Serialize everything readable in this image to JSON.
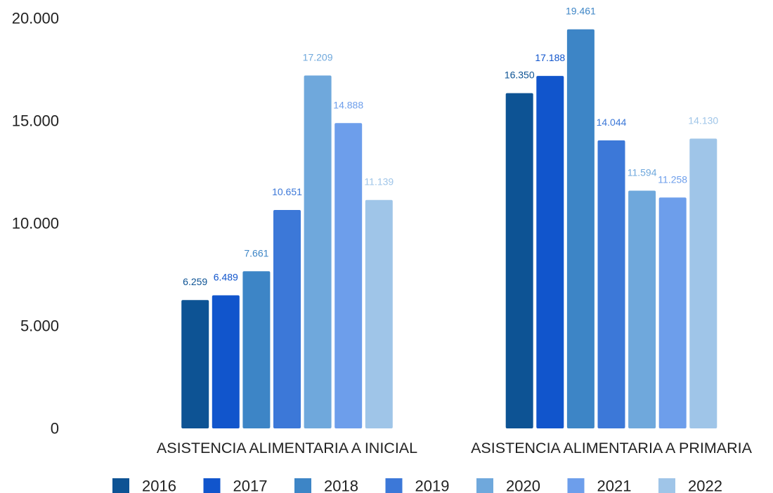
{
  "chart_data": {
    "type": "bar",
    "categories": [
      "ASISTENCIA ALIMENTARIA A INICIAL",
      "ASISTENCIA ALIMENTARIA A PRIMARIA"
    ],
    "series": [
      {
        "name": "2016",
        "color": "#0D5394",
        "values": [
          6259,
          16350
        ],
        "labels": [
          "6.259",
          "16.350"
        ]
      },
      {
        "name": "2017",
        "color": "#1155CC",
        "values": [
          6489,
          17188
        ],
        "labels": [
          "6.489",
          "17.188"
        ]
      },
      {
        "name": "2018",
        "color": "#3D85C6",
        "values": [
          7661,
          19461
        ],
        "labels": [
          "7.661",
          "19.461"
        ]
      },
      {
        "name": "2019",
        "color": "#3C78D8",
        "values": [
          10651,
          14044
        ],
        "labels": [
          "10.651",
          "14.044"
        ]
      },
      {
        "name": "2020",
        "color": "#6FA8DC",
        "values": [
          17209,
          11594
        ],
        "labels": [
          "17.209",
          "11.594"
        ]
      },
      {
        "name": "2021",
        "color": "#6D9EEB",
        "values": [
          14888,
          11258
        ],
        "labels": [
          "14.888",
          "11.258"
        ]
      },
      {
        "name": "2022",
        "color": "#9FC5E8",
        "values": [
          11139,
          14130
        ],
        "labels": [
          "11.139",
          "14.130"
        ]
      }
    ],
    "yticks": [
      {
        "value": 0,
        "label": "0"
      },
      {
        "value": 5000,
        "label": "5.000"
      },
      {
        "value": 10000,
        "label": "10.000"
      },
      {
        "value": 15000,
        "label": "15.000"
      },
      {
        "value": 20000,
        "label": "20.000"
      }
    ],
    "ylim": [
      0,
      20000
    ],
    "grid": false,
    "legend_position": "bottom"
  }
}
